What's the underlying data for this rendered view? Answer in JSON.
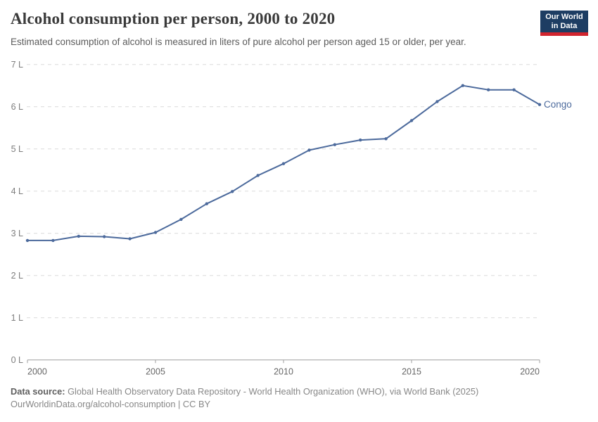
{
  "header": {
    "title": "Alcohol consumption per person, 2000 to 2020",
    "subtitle": "Estimated consumption of alcohol is measured in liters of pure alcohol per person aged 15 or older, per year.",
    "logo": {
      "line1": "Our World",
      "line2": "in Data"
    }
  },
  "chart_data": {
    "type": "line",
    "title": "Alcohol consumption per person, 2000 to 2020",
    "x": [
      2000,
      2001,
      2002,
      2003,
      2004,
      2005,
      2006,
      2007,
      2008,
      2009,
      2010,
      2011,
      2012,
      2013,
      2014,
      2015,
      2016,
      2017,
      2018,
      2019,
      2020
    ],
    "series": [
      {
        "name": "Congo",
        "color": "#4C6A9C",
        "values": [
          2.83,
          2.83,
          2.93,
          2.92,
          2.87,
          3.02,
          3.33,
          3.7,
          3.99,
          4.37,
          4.65,
          4.97,
          5.1,
          5.21,
          5.24,
          5.67,
          6.12,
          6.5,
          6.4,
          6.4,
          6.05
        ]
      }
    ],
    "xlim": [
      2000,
      2020
    ],
    "ylim": [
      0,
      7
    ],
    "xticks": [
      2000,
      2005,
      2010,
      2015,
      2020
    ],
    "yticks": [
      0,
      1,
      2,
      3,
      4,
      5,
      6,
      7
    ],
    "ytick_suffix": " L",
    "grid": "horizontal-dashed",
    "legend_position": "end-of-line",
    "end_label": "Congo"
  },
  "footer": {
    "datasource_label": "Data source:",
    "datasource_text": " Global Health Observatory Data Repository - World Health Organization (WHO), via World Bank (2025)",
    "link_line": "OurWorldinData.org/alcohol-consumption | CC BY"
  },
  "colors": {
    "line": "#4C6A9C",
    "grid": "#dadada",
    "axis": "#9e9e9e",
    "logo_bg": "#1d3d63",
    "logo_underline": "#d1242e"
  }
}
